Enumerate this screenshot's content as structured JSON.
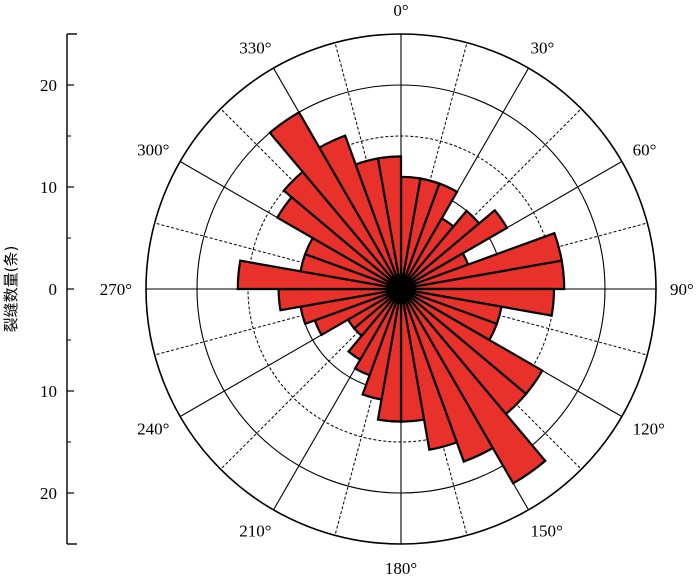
{
  "chart_data": {
    "type": "rose",
    "ylabel": "裂缝数量(条)",
    "bin_width_deg": 10,
    "bin_start_deg": [
      0,
      10,
      20,
      30,
      40,
      50,
      60,
      70,
      80,
      90,
      100,
      110,
      120,
      130,
      140,
      150,
      160,
      170,
      180,
      190,
      200,
      210,
      220,
      230,
      240,
      250,
      260,
      270,
      280,
      290,
      300,
      310,
      320,
      330,
      340,
      350
    ],
    "values": [
      11,
      11,
      11,
      8,
      10,
      12,
      7,
      16,
      16,
      15,
      10,
      10,
      16,
      16,
      22,
      18,
      16,
      13,
      13,
      11,
      9,
      8,
      6,
      6,
      9,
      10,
      12,
      16,
      10,
      10,
      14,
      15,
      20,
      16,
      13,
      13
    ],
    "rlim": [
      0,
      25
    ],
    "r_ticks": [
      0,
      10,
      20
    ],
    "scale_tick_labels": [
      "20",
      "10",
      "0",
      "10",
      "20"
    ],
    "angle_ticks": [
      0,
      30,
      60,
      90,
      120,
      150,
      180,
      210,
      240,
      270,
      300,
      330
    ],
    "angle_tick_labels": [
      "0°",
      "30°",
      "60°",
      "90°",
      "120°",
      "150°",
      "180°",
      "210°",
      "240°",
      "270°",
      "300°",
      "330°"
    ],
    "spoke_step_deg": 15,
    "grid": true,
    "colors": {
      "bar_fill": "#e8312a",
      "bar_edge": "#000000",
      "grid": "#000000"
    }
  }
}
